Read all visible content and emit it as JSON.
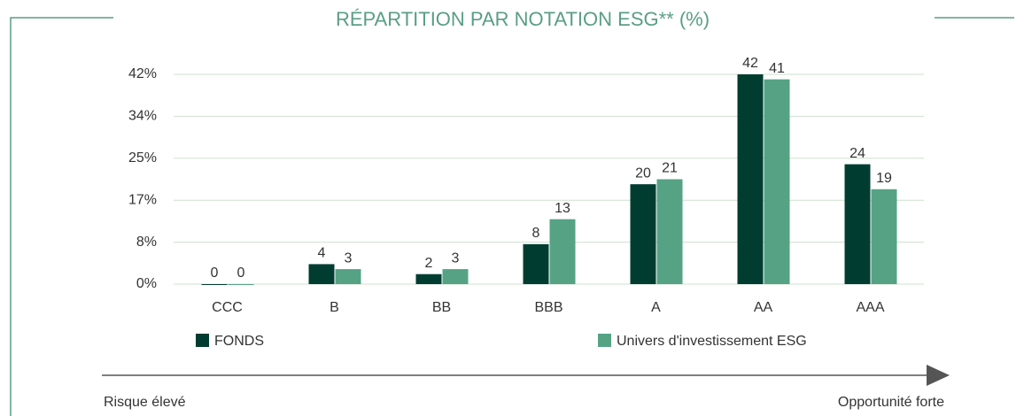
{
  "chart_data": {
    "type": "bar",
    "title": "RÉPARTITION PAR NOTATION ESG** (%)",
    "categories": [
      "CCC",
      "B",
      "BB",
      "BBB",
      "A",
      "AA",
      "AAA"
    ],
    "series": [
      {
        "name": "FONDS",
        "color": "#003d30",
        "values": [
          0,
          4,
          2,
          8,
          20,
          42,
          24
        ]
      },
      {
        "name": "Univers d'investissement ESG",
        "color": "#55a384",
        "values": [
          0,
          3,
          3,
          13,
          21,
          41,
          19
        ]
      }
    ],
    "ylim": [
      0,
      42
    ],
    "yticks": [
      {
        "value": 0,
        "label": "0%"
      },
      {
        "value": 8.4,
        "label": "8%"
      },
      {
        "value": 16.8,
        "label": "17%"
      },
      {
        "value": 25.2,
        "label": "25%"
      },
      {
        "value": 33.6,
        "label": "34%"
      },
      {
        "value": 42,
        "label": "42%"
      }
    ],
    "grid": true,
    "annotations": [
      "Risque élevé",
      "Opportunité forte"
    ]
  }
}
